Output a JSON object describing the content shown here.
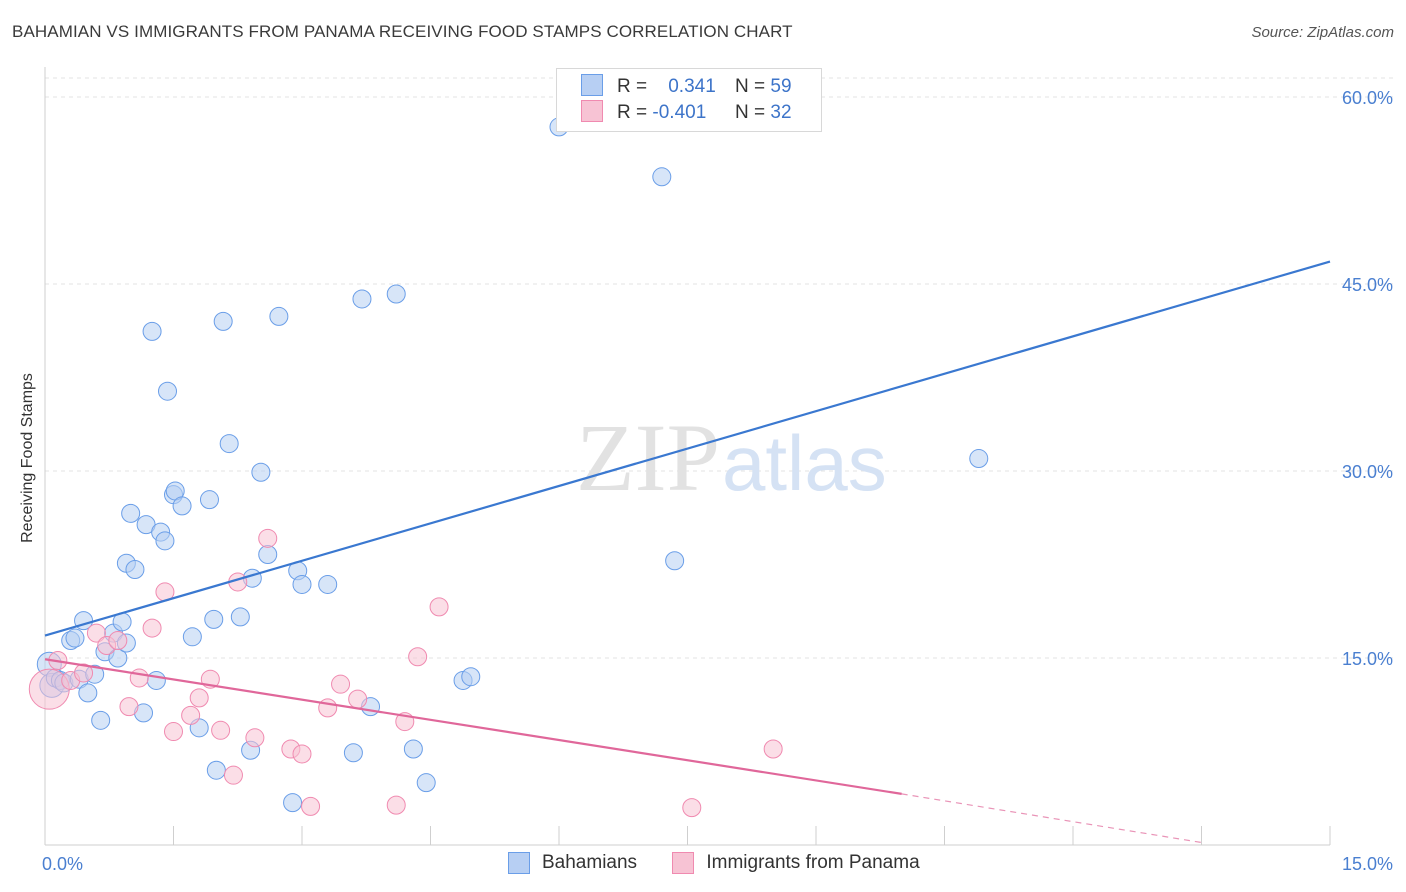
{
  "title": "BAHAMIAN VS IMMIGRANTS FROM PANAMA RECEIVING FOOD STAMPS CORRELATION CHART",
  "source": "Source: ZipAtlas.com",
  "watermark": {
    "zip": "ZIP",
    "atlas": "atlas"
  },
  "legend": {
    "rows": [
      {
        "r_label": "R =",
        "r_value": "0.341",
        "n_label": "N =",
        "n_value": "59",
        "color": "#6a9ee8"
      },
      {
        "r_label": "R =",
        "r_value": "-0.401",
        "n_label": "N =",
        "n_value": "32",
        "color": "#f08ab0"
      }
    ]
  },
  "chart_data": {
    "type": "scatter",
    "xlabel": "",
    "ylabel": "Receiving Food Stamps",
    "xlim": [
      0,
      15
    ],
    "ylim": [
      0,
      60
    ],
    "x_tick_labels": [
      "0.0%",
      "15.0%"
    ],
    "y_ticks": [
      15,
      30,
      45,
      60
    ],
    "y_tick_labels": [
      "15.0%",
      "30.0%",
      "45.0%",
      "60.0%"
    ],
    "grid": true,
    "series": [
      {
        "name": "Bahamians",
        "color": "#6a9ee8",
        "fill": "#b7cff3",
        "trend": {
          "x": [
            0,
            15
          ],
          "y": [
            16.8,
            46.8
          ]
        },
        "points": [
          [
            0.05,
            14.5
          ],
          [
            0.08,
            12.8
          ],
          [
            0.12,
            13.4
          ],
          [
            0.18,
            13.2
          ],
          [
            0.22,
            13.0
          ],
          [
            0.3,
            16.4
          ],
          [
            0.35,
            16.6
          ],
          [
            0.4,
            13.3
          ],
          [
            0.45,
            18.0
          ],
          [
            0.5,
            12.2
          ],
          [
            0.58,
            13.7
          ],
          [
            0.65,
            10.0
          ],
          [
            0.7,
            15.5
          ],
          [
            0.8,
            17.0
          ],
          [
            0.85,
            15.0
          ],
          [
            0.9,
            17.9
          ],
          [
            0.95,
            16.2
          ],
          [
            0.95,
            22.6
          ],
          [
            1.0,
            26.6
          ],
          [
            1.05,
            22.1
          ],
          [
            1.15,
            10.6
          ],
          [
            1.18,
            25.7
          ],
          [
            1.25,
            41.2
          ],
          [
            1.3,
            13.2
          ],
          [
            1.35,
            25.1
          ],
          [
            1.4,
            24.4
          ],
          [
            1.43,
            36.4
          ],
          [
            1.5,
            28.1
          ],
          [
            1.52,
            28.4
          ],
          [
            1.6,
            27.2
          ],
          [
            1.72,
            16.7
          ],
          [
            1.8,
            9.4
          ],
          [
            1.92,
            27.7
          ],
          [
            1.97,
            18.1
          ],
          [
            2.0,
            6.0
          ],
          [
            2.08,
            42.0
          ],
          [
            2.15,
            32.2
          ],
          [
            2.28,
            18.3
          ],
          [
            2.4,
            7.6
          ],
          [
            2.42,
            21.4
          ],
          [
            2.52,
            29.9
          ],
          [
            2.6,
            23.3
          ],
          [
            2.73,
            42.4
          ],
          [
            2.89,
            3.4
          ],
          [
            2.95,
            22.0
          ],
          [
            3.0,
            20.9
          ],
          [
            3.3,
            20.9
          ],
          [
            3.6,
            7.4
          ],
          [
            3.7,
            43.8
          ],
          [
            3.8,
            11.1
          ],
          [
            4.1,
            44.2
          ],
          [
            4.3,
            7.7
          ],
          [
            4.45,
            5.0
          ],
          [
            4.88,
            13.2
          ],
          [
            4.97,
            13.5
          ],
          [
            6.0,
            57.6
          ],
          [
            7.2,
            53.6
          ],
          [
            7.35,
            22.8
          ],
          [
            10.9,
            31.0
          ]
        ]
      },
      {
        "name": "Immigrants from Panama",
        "color": "#f08ab0",
        "fill": "#f7c3d4",
        "trend": {
          "x": [
            0,
            10.0
          ],
          "y": [
            14.9,
            4.1
          ]
        },
        "trend_dashed": {
          "x": [
            10.0,
            13.5
          ],
          "y": [
            4.1,
            0.2
          ]
        },
        "points": [
          [
            0.05,
            12.5
          ],
          [
            0.15,
            14.8
          ],
          [
            0.3,
            13.2
          ],
          [
            0.45,
            13.8
          ],
          [
            0.6,
            17.0
          ],
          [
            0.72,
            16.0
          ],
          [
            0.85,
            16.4
          ],
          [
            0.98,
            11.1
          ],
          [
            1.1,
            13.4
          ],
          [
            1.25,
            17.4
          ],
          [
            1.4,
            20.3
          ],
          [
            1.5,
            9.1
          ],
          [
            1.7,
            10.4
          ],
          [
            1.8,
            11.8
          ],
          [
            1.93,
            13.3
          ],
          [
            2.05,
            9.2
          ],
          [
            2.2,
            5.6
          ],
          [
            2.25,
            21.1
          ],
          [
            2.45,
            8.6
          ],
          [
            2.6,
            24.6
          ],
          [
            2.87,
            7.7
          ],
          [
            3.0,
            7.3
          ],
          [
            3.1,
            3.1
          ],
          [
            3.3,
            11.0
          ],
          [
            3.45,
            12.9
          ],
          [
            3.65,
            11.7
          ],
          [
            4.1,
            3.2
          ],
          [
            4.2,
            9.9
          ],
          [
            4.35,
            15.1
          ],
          [
            4.6,
            19.1
          ],
          [
            7.55,
            3.0
          ],
          [
            8.5,
            7.7
          ]
        ]
      }
    ]
  }
}
